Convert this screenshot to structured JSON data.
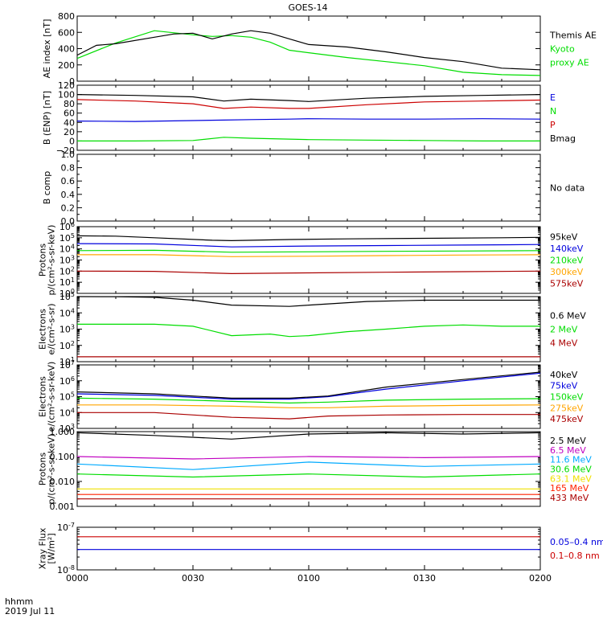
{
  "title": "GOES-14",
  "time_axis": {
    "ticks": [
      "0000",
      "0030",
      "0100",
      "0130",
      "0200"
    ],
    "left_label": "hhmm",
    "date_label": "2019 Jul 11"
  },
  "colors": {
    "black": "#000000",
    "green": "#00dd00",
    "red": "#cc0000",
    "blue": "#0000dd",
    "orange": "#ffa500",
    "yellow": "#f0e000",
    "cyan": "#00aaff",
    "darkred": "#aa0000",
    "brightred": "#ff2200",
    "magenta": "#c000c0"
  },
  "chart_data": [
    {
      "type": "line",
      "ylabel": "AE index [nT]",
      "ylim": [
        0,
        800
      ],
      "yticks": [
        "0",
        "200",
        "400",
        "600",
        "800"
      ],
      "series": [
        {
          "name": "Kyoto proxy AE",
          "label_lines": [
            "Kyoto",
            "proxy AE"
          ],
          "color": "#00dd00",
          "t": [
            0,
            10,
            20,
            30,
            35,
            40,
            45,
            50,
            55,
            60,
            70,
            80,
            90,
            100,
            110,
            120
          ],
          "y": [
            280,
            470,
            620,
            570,
            550,
            560,
            540,
            480,
            380,
            350,
            290,
            240,
            190,
            110,
            80,
            70
          ]
        },
        {
          "name": "Themis AE",
          "label_lines": [
            "Themis AE"
          ],
          "color": "#000000",
          "t": [
            0,
            5,
            10,
            20,
            25,
            30,
            35,
            40,
            45,
            50,
            55,
            60,
            70,
            80,
            90,
            100,
            110,
            120
          ],
          "y": [
            320,
            440,
            460,
            540,
            580,
            590,
            520,
            580,
            620,
            590,
            520,
            450,
            420,
            360,
            290,
            240,
            160,
            140
          ]
        }
      ]
    },
    {
      "type": "line",
      "ylabel": "B (ENP) [nT]",
      "ylim": [
        -20,
        120
      ],
      "yticks": [
        "−20",
        "0",
        "20",
        "40",
        "60",
        "80",
        "100",
        "120"
      ],
      "series": [
        {
          "name": "Bmag",
          "color": "#000000",
          "t": [
            0,
            15,
            30,
            38,
            45,
            55,
            60,
            75,
            90,
            105,
            120
          ],
          "y": [
            100,
            98,
            95,
            86,
            90,
            87,
            85,
            92,
            96,
            98,
            100
          ]
        },
        {
          "name": "P",
          "color": "#cc0000",
          "t": [
            0,
            15,
            30,
            38,
            45,
            55,
            60,
            75,
            90,
            105,
            120
          ],
          "y": [
            89,
            86,
            80,
            70,
            73,
            70,
            70,
            78,
            84,
            86,
            88
          ]
        },
        {
          "name": "N",
          "color": "#00dd00",
          "t": [
            0,
            15,
            30,
            38,
            45,
            55,
            60,
            75,
            90,
            105,
            120
          ],
          "y": [
            0,
            0,
            1,
            8,
            6,
            4,
            3,
            2,
            1,
            0,
            0
          ]
        },
        {
          "name": "E",
          "color": "#0000dd",
          "t": [
            0,
            15,
            30,
            38,
            45,
            55,
            60,
            75,
            90,
            105,
            120
          ],
          "y": [
            43,
            42,
            44,
            45,
            46,
            47,
            48,
            47,
            47,
            48,
            47
          ]
        }
      ]
    },
    {
      "type": "line",
      "ylabel": "B comp",
      "ylim": [
        0,
        1
      ],
      "yticks": [
        "0.0",
        "0.2",
        "0.4",
        "0.6",
        "0.8",
        "1.0"
      ],
      "minor_ticks": [
        "0.1",
        "0.3",
        "0.5",
        "0.7",
        "0.9"
      ],
      "no_data_text": "No data",
      "series": []
    },
    {
      "type": "line",
      "ylabel": "Protons p/(cm²-s-sr-keV)",
      "ylabel_lines": [
        "Protons",
        "p/(cm²-s-sr-keV)"
      ],
      "log": true,
      "ylim": [
        1,
        1000000
      ],
      "yticks_exp": [
        1,
        2,
        3,
        4,
        5,
        6
      ],
      "series": [
        {
          "name": "575keV",
          "color": "#aa0000",
          "t": [
            0,
            20,
            40,
            60,
            80,
            100,
            120
          ],
          "y": [
            100,
            95,
            60,
            70,
            80,
            90,
            100
          ]
        },
        {
          "name": "300keV",
          "color": "#ffa500",
          "t": [
            0,
            20,
            40,
            60,
            80,
            100,
            120
          ],
          "y": [
            3000,
            3000,
            2000,
            2200,
            2500,
            2800,
            3000
          ]
        },
        {
          "name": "210keV",
          "color": "#00dd00",
          "t": [
            0,
            20,
            40,
            60,
            80,
            100,
            120
          ],
          "y": [
            7000,
            7500,
            5000,
            5500,
            6000,
            6500,
            7000
          ]
        },
        {
          "name": "140keV",
          "color": "#0000dd",
          "t": [
            0,
            20,
            40,
            60,
            80,
            100,
            120
          ],
          "y": [
            30000,
            28000,
            15000,
            18000,
            20000,
            22000,
            25000
          ]
        },
        {
          "name": "95keV",
          "color": "#000000",
          "t": [
            0,
            10,
            20,
            35,
            40,
            55,
            70,
            90,
            110,
            120
          ],
          "y": [
            150000,
            140000,
            100000,
            60000,
            55000,
            70000,
            80000,
            90000,
            100000,
            110000
          ]
        }
      ]
    },
    {
      "type": "line",
      "ylabel": "Electrons e/(cm²-s-sr)",
      "ylabel_lines": [
        "Electrons",
        "e/(cm²-s-sr)"
      ],
      "log": true,
      "ylim": [
        10,
        100000
      ],
      "yticks_exp": [
        1,
        2,
        3,
        4,
        5
      ],
      "series": [
        {
          "name": "4 MeV",
          "color": "#aa0000",
          "t": [
            0,
            30,
            60,
            90,
            120
          ],
          "y": [
            20,
            20,
            20,
            20,
            20
          ]
        },
        {
          "name": "2 MeV",
          "color": "#00dd00",
          "t": [
            0,
            20,
            30,
            40,
            50,
            55,
            60,
            70,
            80,
            90,
            100,
            110,
            120
          ],
          "y": [
            2000,
            2000,
            1500,
            400,
            500,
            350,
            400,
            700,
            1000,
            1500,
            1800,
            1500,
            1500
          ]
        },
        {
          "name": "0.6 MeV",
          "color": "#000000",
          "t": [
            0,
            10,
            20,
            30,
            40,
            55,
            60,
            75,
            90,
            105,
            120
          ],
          "y": [
            100000,
            98000,
            90000,
            60000,
            30000,
            25000,
            30000,
            50000,
            60000,
            60000,
            60000
          ]
        }
      ]
    },
    {
      "type": "line",
      "ylabel": "Electrons e/(cm²-s-sr-keV)",
      "ylabel_lines": [
        "Electrons",
        "e/(cm²-s-sr-keV)"
      ],
      "log": true,
      "ylim": [
        1000,
        10000000
      ],
      "yticks_exp": [
        3,
        4,
        5,
        6,
        7
      ],
      "series": [
        {
          "name": "475keV",
          "color": "#aa0000",
          "t": [
            0,
            20,
            40,
            55,
            65,
            80,
            100,
            120
          ],
          "y": [
            10000,
            10000,
            5000,
            4000,
            6000,
            7000,
            7500,
            7500
          ]
        },
        {
          "name": "275keV",
          "color": "#ffa500",
          "t": [
            0,
            20,
            40,
            55,
            65,
            80,
            100,
            120
          ],
          "y": [
            30000,
            30000,
            25000,
            20000,
            20000,
            25000,
            28000,
            30000
          ]
        },
        {
          "name": "150keV",
          "color": "#00dd00",
          "t": [
            0,
            20,
            40,
            55,
            65,
            80,
            100,
            120
          ],
          "y": [
            80000,
            70000,
            50000,
            40000,
            45000,
            60000,
            70000,
            75000
          ]
        },
        {
          "name": "75keV",
          "color": "#0000dd",
          "t": [
            0,
            20,
            40,
            55,
            65,
            80,
            100,
            120
          ],
          "y": [
            150000,
            120000,
            70000,
            70000,
            100000,
            300000,
            1000000,
            3000000
          ]
        },
        {
          "name": "40keV",
          "color": "#000000",
          "t": [
            0,
            20,
            40,
            55,
            65,
            80,
            100,
            120
          ],
          "y": [
            200000,
            150000,
            80000,
            80000,
            110000,
            400000,
            1200000,
            3500000
          ]
        }
      ]
    },
    {
      "type": "line",
      "ylabel": "Protons p/(cm²-s-sr-keV)",
      "ylabel_lines": [
        "Protons",
        "p/(cm²-s-sr-keV)"
      ],
      "log": true,
      "ylim": [
        0.001,
        1
      ],
      "ytick_labels": [
        "0.001",
        "0.010",
        "0.100",
        "1.000"
      ],
      "series": [
        {
          "name": "433 MeV",
          "color": "#aa0000",
          "t": [
            0,
            120
          ],
          "y": [
            0.002,
            0.002
          ]
        },
        {
          "name": "165 MeV",
          "color": "#ff2200",
          "t": [
            0,
            120
          ],
          "y": [
            0.003,
            0.003
          ]
        },
        {
          "name": "63.1 MeV",
          "color": "#f0e000",
          "t": [
            0,
            120
          ],
          "y": [
            0.005,
            0.005
          ]
        },
        {
          "name": "30.6 MeV",
          "color": "#00dd00",
          "t": [
            0,
            30,
            60,
            90,
            120
          ],
          "y": [
            0.02,
            0.015,
            0.02,
            0.015,
            0.02
          ]
        },
        {
          "name": "11.6 MeV",
          "color": "#00aaff",
          "t": [
            0,
            30,
            60,
            90,
            120
          ],
          "y": [
            0.05,
            0.03,
            0.06,
            0.04,
            0.05
          ]
        },
        {
          "name": "6.5 MeV",
          "color": "#c000c0",
          "t": [
            0,
            30,
            60,
            90,
            120
          ],
          "y": [
            0.1,
            0.08,
            0.1,
            0.09,
            0.1
          ]
        },
        {
          "name": "2.5 MeV",
          "color": "#000000",
          "t": [
            0,
            20,
            40,
            60,
            80,
            100,
            120
          ],
          "y": [
            0.9,
            0.7,
            0.5,
            0.8,
            0.9,
            0.8,
            0.9
          ]
        }
      ]
    },
    {
      "type": "line",
      "ylabel": "Xray Flux [W/m²]",
      "ylabel_lines": [
        "Xray Flux",
        "[W/m²]"
      ],
      "log": true,
      "ylim": [
        1e-08,
        1e-07
      ],
      "yticks_exp": [
        -8,
        -7
      ],
      "series": [
        {
          "name": "0.1–0.8 nm",
          "color": "#cc0000",
          "t": [
            0,
            30,
            60,
            90,
            120
          ],
          "y": [
            6e-08,
            6e-08,
            6e-08,
            6e-08,
            6e-08
          ]
        },
        {
          "name": "0.05–0.4 nm",
          "color": "#0000dd",
          "t": [
            0,
            30,
            60,
            90,
            120
          ],
          "y": [
            3e-08,
            3e-08,
            3e-08,
            3e-08,
            3e-08
          ]
        }
      ]
    }
  ]
}
